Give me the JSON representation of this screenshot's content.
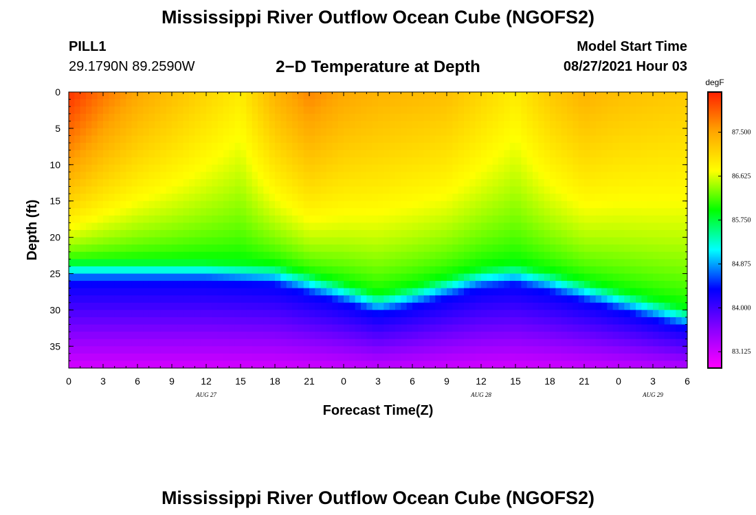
{
  "header": {
    "title_top": "Mississippi River Outflow Ocean Cube (NGOFS2)",
    "station": "PILL1",
    "coords": "29.1790N  89.2590W",
    "plot_title": "2−D Temperature at Depth",
    "model_start_label": "Model Start Time",
    "model_start_value": "08/27/2021 Hour 03"
  },
  "footer": {
    "title_bottom": "Mississippi River Outflow Ocean Cube (NGOFS2)"
  },
  "chart_data": {
    "type": "heatmap",
    "xlabel": "Forecast Time(Z)",
    "ylabel": "Depth (ft)",
    "x_tick_labels": [
      "0",
      "3",
      "6",
      "9",
      "12",
      "15",
      "18",
      "21",
      "0",
      "3",
      "6",
      "9",
      "12",
      "15",
      "18",
      "21",
      "0",
      "3",
      "6"
    ],
    "x_range_hours": [
      0,
      54
    ],
    "date_labels": [
      {
        "text": "AUG 27",
        "hour": 12
      },
      {
        "text": "AUG 28",
        "hour": 36
      },
      {
        "text": "AUG 29",
        "hour": 51
      }
    ],
    "y_ticks": [
      0,
      5,
      10,
      15,
      20,
      25,
      30,
      35
    ],
    "y_range_ft": [
      0,
      38
    ],
    "colorbar": {
      "units": "degF",
      "tick_labels": [
        "87.500",
        "86.625",
        "85.750",
        "84.875",
        "84.000",
        "83.125"
      ],
      "ticks": [
        87.5,
        86.625,
        85.75,
        84.875,
        84.0,
        83.125
      ],
      "range": [
        82.8,
        88.3
      ],
      "colors": [
        "#ff00ff",
        "#8800ff",
        "#0000ff",
        "#00ffff",
        "#00ff00",
        "#ffff00",
        "#ffa500",
        "#ff2000"
      ]
    },
    "thermocline_depth_ft": {
      "hours": [
        0,
        12,
        18,
        24,
        27,
        30,
        36,
        39,
        42,
        48,
        54
      ],
      "depth": [
        23.5,
        23.5,
        24.0,
        26.5,
        28.0,
        27.0,
        24.5,
        24.0,
        25.0,
        27.5,
        30.0
      ]
    },
    "surface_temp_degF": {
      "hours": [
        0,
        3,
        6,
        12,
        15,
        18,
        21,
        24,
        27,
        33,
        36,
        39,
        42,
        45,
        48,
        54
      ],
      "values": [
        88.2,
        87.8,
        87.5,
        87.1,
        86.9,
        87.4,
        87.7,
        87.5,
        87.4,
        87.3,
        87.1,
        86.9,
        87.2,
        87.4,
        87.3,
        87.2
      ]
    }
  }
}
